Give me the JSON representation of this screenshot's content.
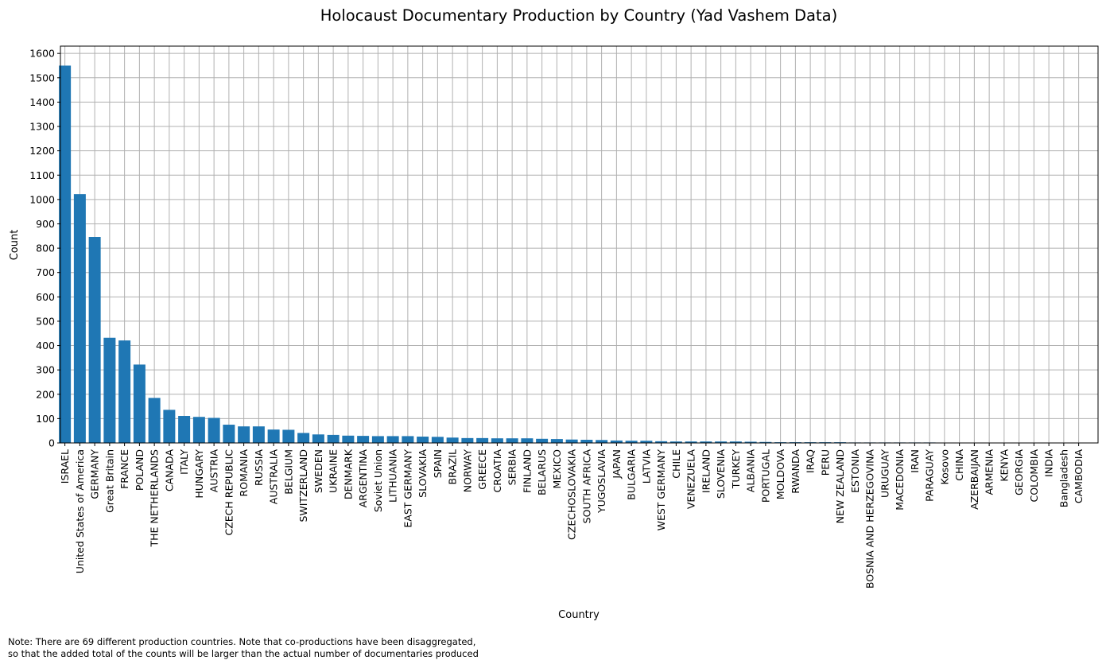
{
  "chart_data": {
    "type": "bar",
    "title": "Holocaust Documentary Production by Country (Yad Vashem Data)",
    "xlabel": "Country",
    "ylabel": "Count",
    "ylim": [
      0,
      1630
    ],
    "yticks": [
      0,
      100,
      200,
      300,
      400,
      500,
      600,
      700,
      800,
      900,
      1000,
      1100,
      1200,
      1300,
      1400,
      1500,
      1600
    ],
    "grid": true,
    "bar_color": "#1f77b4",
    "categories": [
      "ISRAEL",
      "United States of America",
      "GERMANY",
      "Great Britain",
      "FRANCE",
      "POLAND",
      "THE NETHERLANDS",
      "CANADA",
      "ITALY",
      "HUNGARY",
      "AUSTRIA",
      "CZECH REPUBLIC",
      "ROMANIA",
      "RUSSIA",
      "AUSTRALIA",
      "BELGIUM",
      "SWITZERLAND",
      "SWEDEN",
      "UKRAINE",
      "DENMARK",
      "ARGENTINA",
      "Soviet Union",
      "LITHUANIA",
      "EAST GERMANY",
      "SLOVAKIA",
      "SPAIN",
      "BRAZIL",
      "NORWAY",
      "GREECE",
      "CROATIA",
      "SERBIA",
      "FINLAND",
      "BELARUS",
      "MEXICO",
      "CZECHOSLOVAKIA",
      "SOUTH AFRICA",
      "YUGOSLAVIA",
      "JAPAN",
      "BULGARIA",
      "LATVIA",
      "WEST GERMANY",
      "CHILE",
      "VENEZUELA",
      "IRELAND",
      "SLOVENIA",
      "TURKEY",
      "ALBANIA",
      "PORTUGAL",
      "MOLDOVA",
      "RWANDA",
      "IRAQ",
      "PERU",
      "NEW ZEALAND",
      "ESTONIA",
      "BOSNIA AND HERZEGOVINA",
      "URUGUAY",
      "MACEDONIA",
      "IRAN",
      "PARAGUAY",
      "Kosovo",
      "CHINA",
      "AZERBAIJAN",
      "ARMENIA",
      "KENYA",
      "GEORGIA",
      "COLOMBIA",
      "INDIA",
      "Bangladesh",
      "CAMBODIA"
    ],
    "values": [
      1550,
      1022,
      846,
      432,
      421,
      322,
      185,
      136,
      111,
      107,
      103,
      75,
      68,
      68,
      55,
      54,
      41,
      35,
      33,
      30,
      29,
      28,
      28,
      28,
      26,
      25,
      22,
      20,
      20,
      19,
      19,
      19,
      17,
      16,
      14,
      13,
      12,
      10,
      9,
      9,
      7,
      6,
      6,
      6,
      6,
      6,
      5,
      4,
      3,
      3,
      3,
      3,
      3,
      2,
      2,
      2,
      2,
      2,
      2,
      1,
      1,
      1,
      1,
      1,
      1,
      1,
      1,
      1,
      1
    ]
  },
  "note": {
    "line1": "Note: There are 69 different production countries. Note that co-productions have been disaggregated,",
    "line2": "so that the added total of the counts will be larger than the actual number of documentaries produced"
  }
}
